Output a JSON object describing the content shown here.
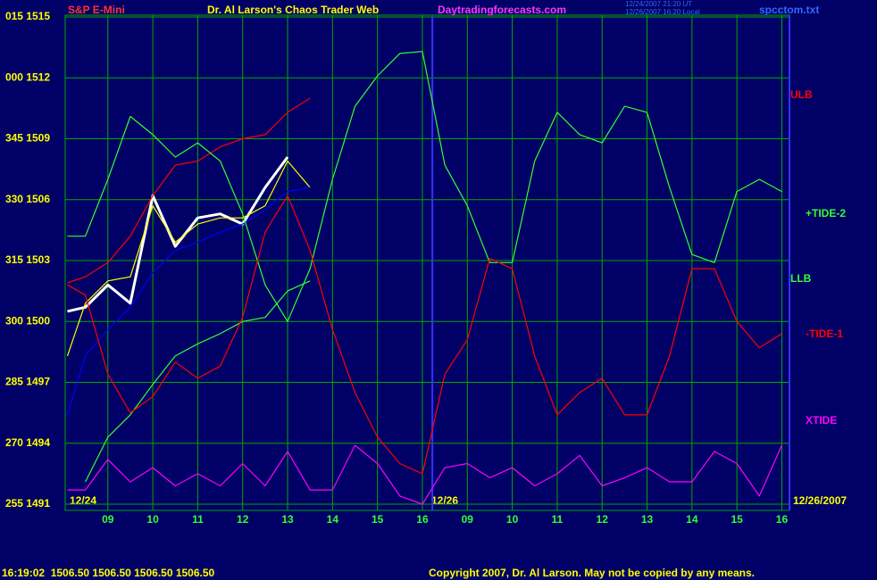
{
  "chart_data": {
    "type": "line",
    "symbol": "S&P E-Mini",
    "title": "Dr. Al Larson's Chaos Trader Web",
    "site": "Daytradingforecasts.com",
    "timestamps": [
      "12/24/2007 21:20 UT",
      "12/26/2007 16:20 Local"
    ],
    "file": "spcctom.txt",
    "date_labels": [
      "12/24",
      "12/26",
      "12/26/2007"
    ],
    "status": "16:19:02  1506.50 1506.50 1506.50 1506.50",
    "copyright": "Copyright 2007, Dr. Al Larson. May not be copied by any means.",
    "xlim": [
      8.05,
      24.17
    ],
    "xticks": [
      {
        "value": 9,
        "label": "09"
      },
      10,
      11,
      12,
      13,
      14,
      15,
      16,
      {
        "value": 17,
        "label": "09"
      },
      {
        "value": 18,
        "label": "10"
      },
      {
        "value": 19,
        "label": "11"
      },
      {
        "value": 20,
        "label": "12"
      },
      {
        "value": 21,
        "label": "13"
      },
      {
        "value": 22,
        "label": "14"
      },
      {
        "value": 23,
        "label": "15"
      },
      {
        "value": 24,
        "label": "16"
      }
    ],
    "ylim": [
      1491,
      1515
    ],
    "yticks": [
      {
        "value": 1515,
        "label": "015 1515"
      },
      {
        "value": 1512,
        "label": "000 1512"
      },
      {
        "value": 1509,
        "label": "345 1509"
      },
      {
        "value": 1506,
        "label": "330 1506"
      },
      {
        "value": 1503,
        "label": "315 1503"
      },
      {
        "value": 1500,
        "label": "300 1500"
      },
      {
        "value": 1497,
        "label": "285 1497"
      },
      {
        "value": 1494,
        "label": "270 1494"
      },
      {
        "value": 1491,
        "label": "255 1491"
      }
    ],
    "grid": true,
    "x": [
      8.1,
      8.5,
      9,
      9.5,
      10,
      10.5,
      11,
      11.5,
      12,
      12.5,
      13,
      13.5,
      14,
      14.5,
      15,
      15.5,
      16,
      16.5,
      17,
      17.5,
      18,
      18.5,
      19,
      19.5,
      20,
      20.5,
      21,
      21.5,
      22,
      22.5,
      23,
      23.5,
      24
    ],
    "series": [
      {
        "color": "#ffffff",
        "values": [
          1500.5,
          1500.7,
          1501.8,
          1500.9,
          1506.2,
          1503.7,
          1505.1,
          1505.3,
          1504.8,
          1506.6,
          1508.1,
          null,
          null,
          null,
          null,
          null,
          null,
          null,
          null,
          null,
          null,
          null,
          null,
          null,
          null,
          null,
          null,
          null,
          null,
          null,
          null,
          null,
          null
        ]
      },
      {
        "color": "#ffff00",
        "values": [
          1498.3,
          1500.9,
          1502.0,
          1502.2,
          1505.7,
          1503.9,
          1504.8,
          1505.1,
          1505.1,
          1505.7,
          1507.9,
          1506.6,
          null,
          null,
          null,
          null,
          null,
          null,
          null,
          null,
          null,
          null,
          null,
          null,
          null,
          null,
          null,
          null,
          null,
          null,
          null,
          null,
          null
        ]
      },
      {
        "color": "#0000ff",
        "values": [
          1495.4,
          1498.3,
          1499.6,
          1500.7,
          1502.4,
          1503.5,
          1503.9,
          1504.4,
          1504.8,
          1505.5,
          1506.4,
          1506.6,
          null,
          null,
          null,
          null,
          null,
          null,
          null,
          null,
          null,
          null,
          null,
          null,
          null,
          null,
          null,
          null,
          null,
          null,
          null,
          null,
          null
        ]
      },
      {
        "name": "ULB",
        "color": "#ff0000",
        "values": [
          1501.9,
          1502.2,
          1502.9,
          1504.2,
          1506.2,
          1507.7,
          1507.9,
          1508.6,
          1509.0,
          1509.2,
          1510.3,
          1511.0,
          null,
          null,
          null,
          null,
          null,
          null,
          null,
          null,
          null,
          null,
          null,
          null,
          null,
          null,
          null,
          null,
          null,
          null,
          null,
          null,
          null
        ]
      },
      {
        "name": "+TIDE-2",
        "color": "#33ff33",
        "values": [
          1504.2,
          1504.2,
          1507.0,
          1510.1,
          1509.2,
          1508.1,
          1508.8,
          1507.9,
          1505.3,
          1501.8,
          1500.0,
          1502.6,
          1507.0,
          1510.6,
          1512.1,
          1513.2,
          1513.3,
          1507.7,
          1505.7,
          1502.9,
          1502.9,
          1507.9,
          1510.3,
          1509.2,
          1508.8,
          1510.6,
          1510.3,
          1506.6,
          1503.3,
          1502.9,
          1506.4,
          1507.0,
          1506.4
        ]
      },
      {
        "name": "LLB",
        "color": "#33ff33",
        "values": [
          null,
          1492.1,
          1494.3,
          1495.4,
          1496.9,
          1498.3,
          1498.9,
          1499.4,
          1500.0,
          1500.2,
          1501.5,
          1502.0,
          null,
          null,
          null,
          null,
          null,
          null,
          null,
          null,
          null,
          null,
          null,
          null,
          null,
          null,
          null,
          null,
          null,
          null,
          null,
          null,
          null
        ]
      },
      {
        "name": "-TIDE-1",
        "color": "#ff0000",
        "values": [
          1501.8,
          1501.3,
          1497.4,
          1495.5,
          1496.3,
          1498.0,
          1497.2,
          1497.8,
          1500.2,
          1504.4,
          1506.2,
          1503.5,
          1499.6,
          1496.5,
          1494.3,
          1493.0,
          1492.5,
          1497.4,
          1499.1,
          1503.1,
          1502.6,
          1498.3,
          1495.4,
          1496.5,
          1497.2,
          1495.4,
          1495.4,
          1498.3,
          1502.6,
          1502.6,
          1500.0,
          1498.7,
          1499.4
        ]
      },
      {
        "name": "XTIDE",
        "color": "#ff00ff",
        "values": [
          1491.7,
          1491.7,
          1493.2,
          1492.1,
          1492.8,
          1491.9,
          1492.5,
          1491.9,
          1493.0,
          1491.9,
          1493.6,
          1491.7,
          1491.7,
          1493.9,
          1493.0,
          1491.4,
          1491.0,
          1492.8,
          1493.0,
          1492.3,
          1492.8,
          1491.9,
          1492.5,
          1493.4,
          1491.9,
          1492.3,
          1492.8,
          1492.1,
          1492.1,
          1493.6,
          1493.0,
          1491.4,
          1493.9
        ]
      }
    ]
  }
}
